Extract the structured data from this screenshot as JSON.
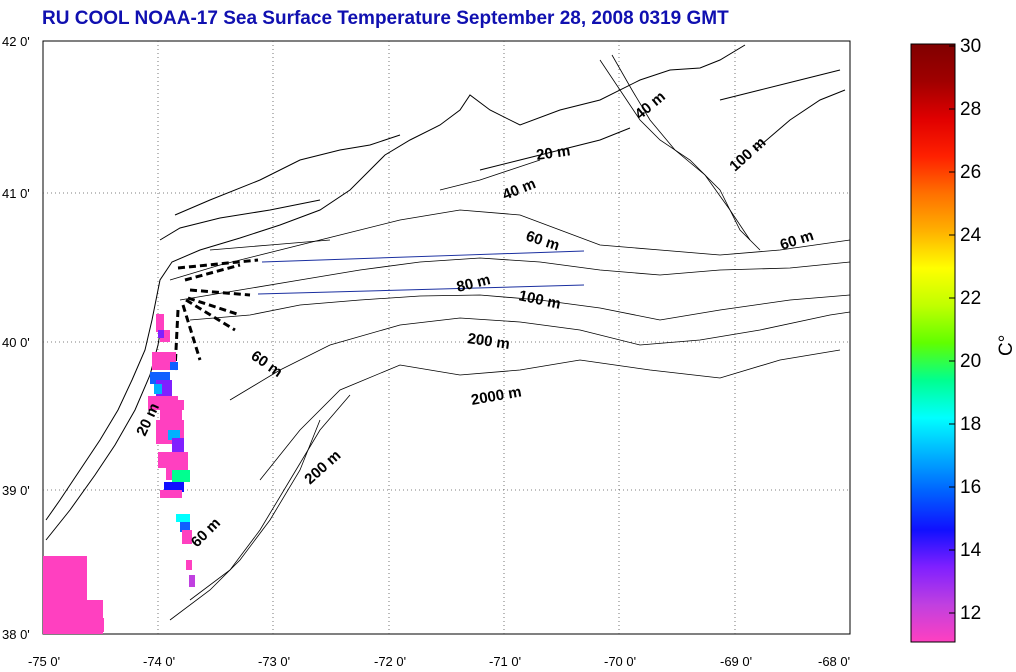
{
  "title": "RU COOL  NOAA-17 Sea Surface Temperature September 28, 2008 0319 GMT",
  "lon_labels": [
    "-75 0'",
    "-74 0'",
    "-73 0'",
    "-72 0'",
    "-71 0'",
    "-70 0'",
    "-69 0'",
    "-68 0'"
  ],
  "lat_labels": [
    "42 0'",
    "41 0'",
    "40 0'",
    "39 0'",
    "38 0'"
  ],
  "colorbar": {
    "labels": [
      "30",
      "28",
      "26",
      "24",
      "22",
      "20",
      "18",
      "16",
      "14",
      "12"
    ],
    "unit": "C°",
    "range": [
      11,
      30
    ],
    "colors": [
      "#ff40c0",
      "#c040e0",
      "#8020ff",
      "#1010ff",
      "#0060ff",
      "#00b0ff",
      "#00ffff",
      "#00ff90",
      "#60ff00",
      "#c0ff00",
      "#ffff00",
      "#ffb000",
      "#ff7000",
      "#ff2000",
      "#e00000",
      "#a00000",
      "#800000"
    ]
  },
  "contour_labels": [
    "20 m",
    "40 m",
    "40 m",
    "60 m",
    "80 m",
    "100 m",
    "100 m",
    "60 m",
    "200 m",
    "2000 m",
    "60 m",
    "20 m",
    "200 m",
    "60 m"
  ],
  "colors": {
    "title": "#1010b0",
    "transect": "#1a2fa0"
  }
}
